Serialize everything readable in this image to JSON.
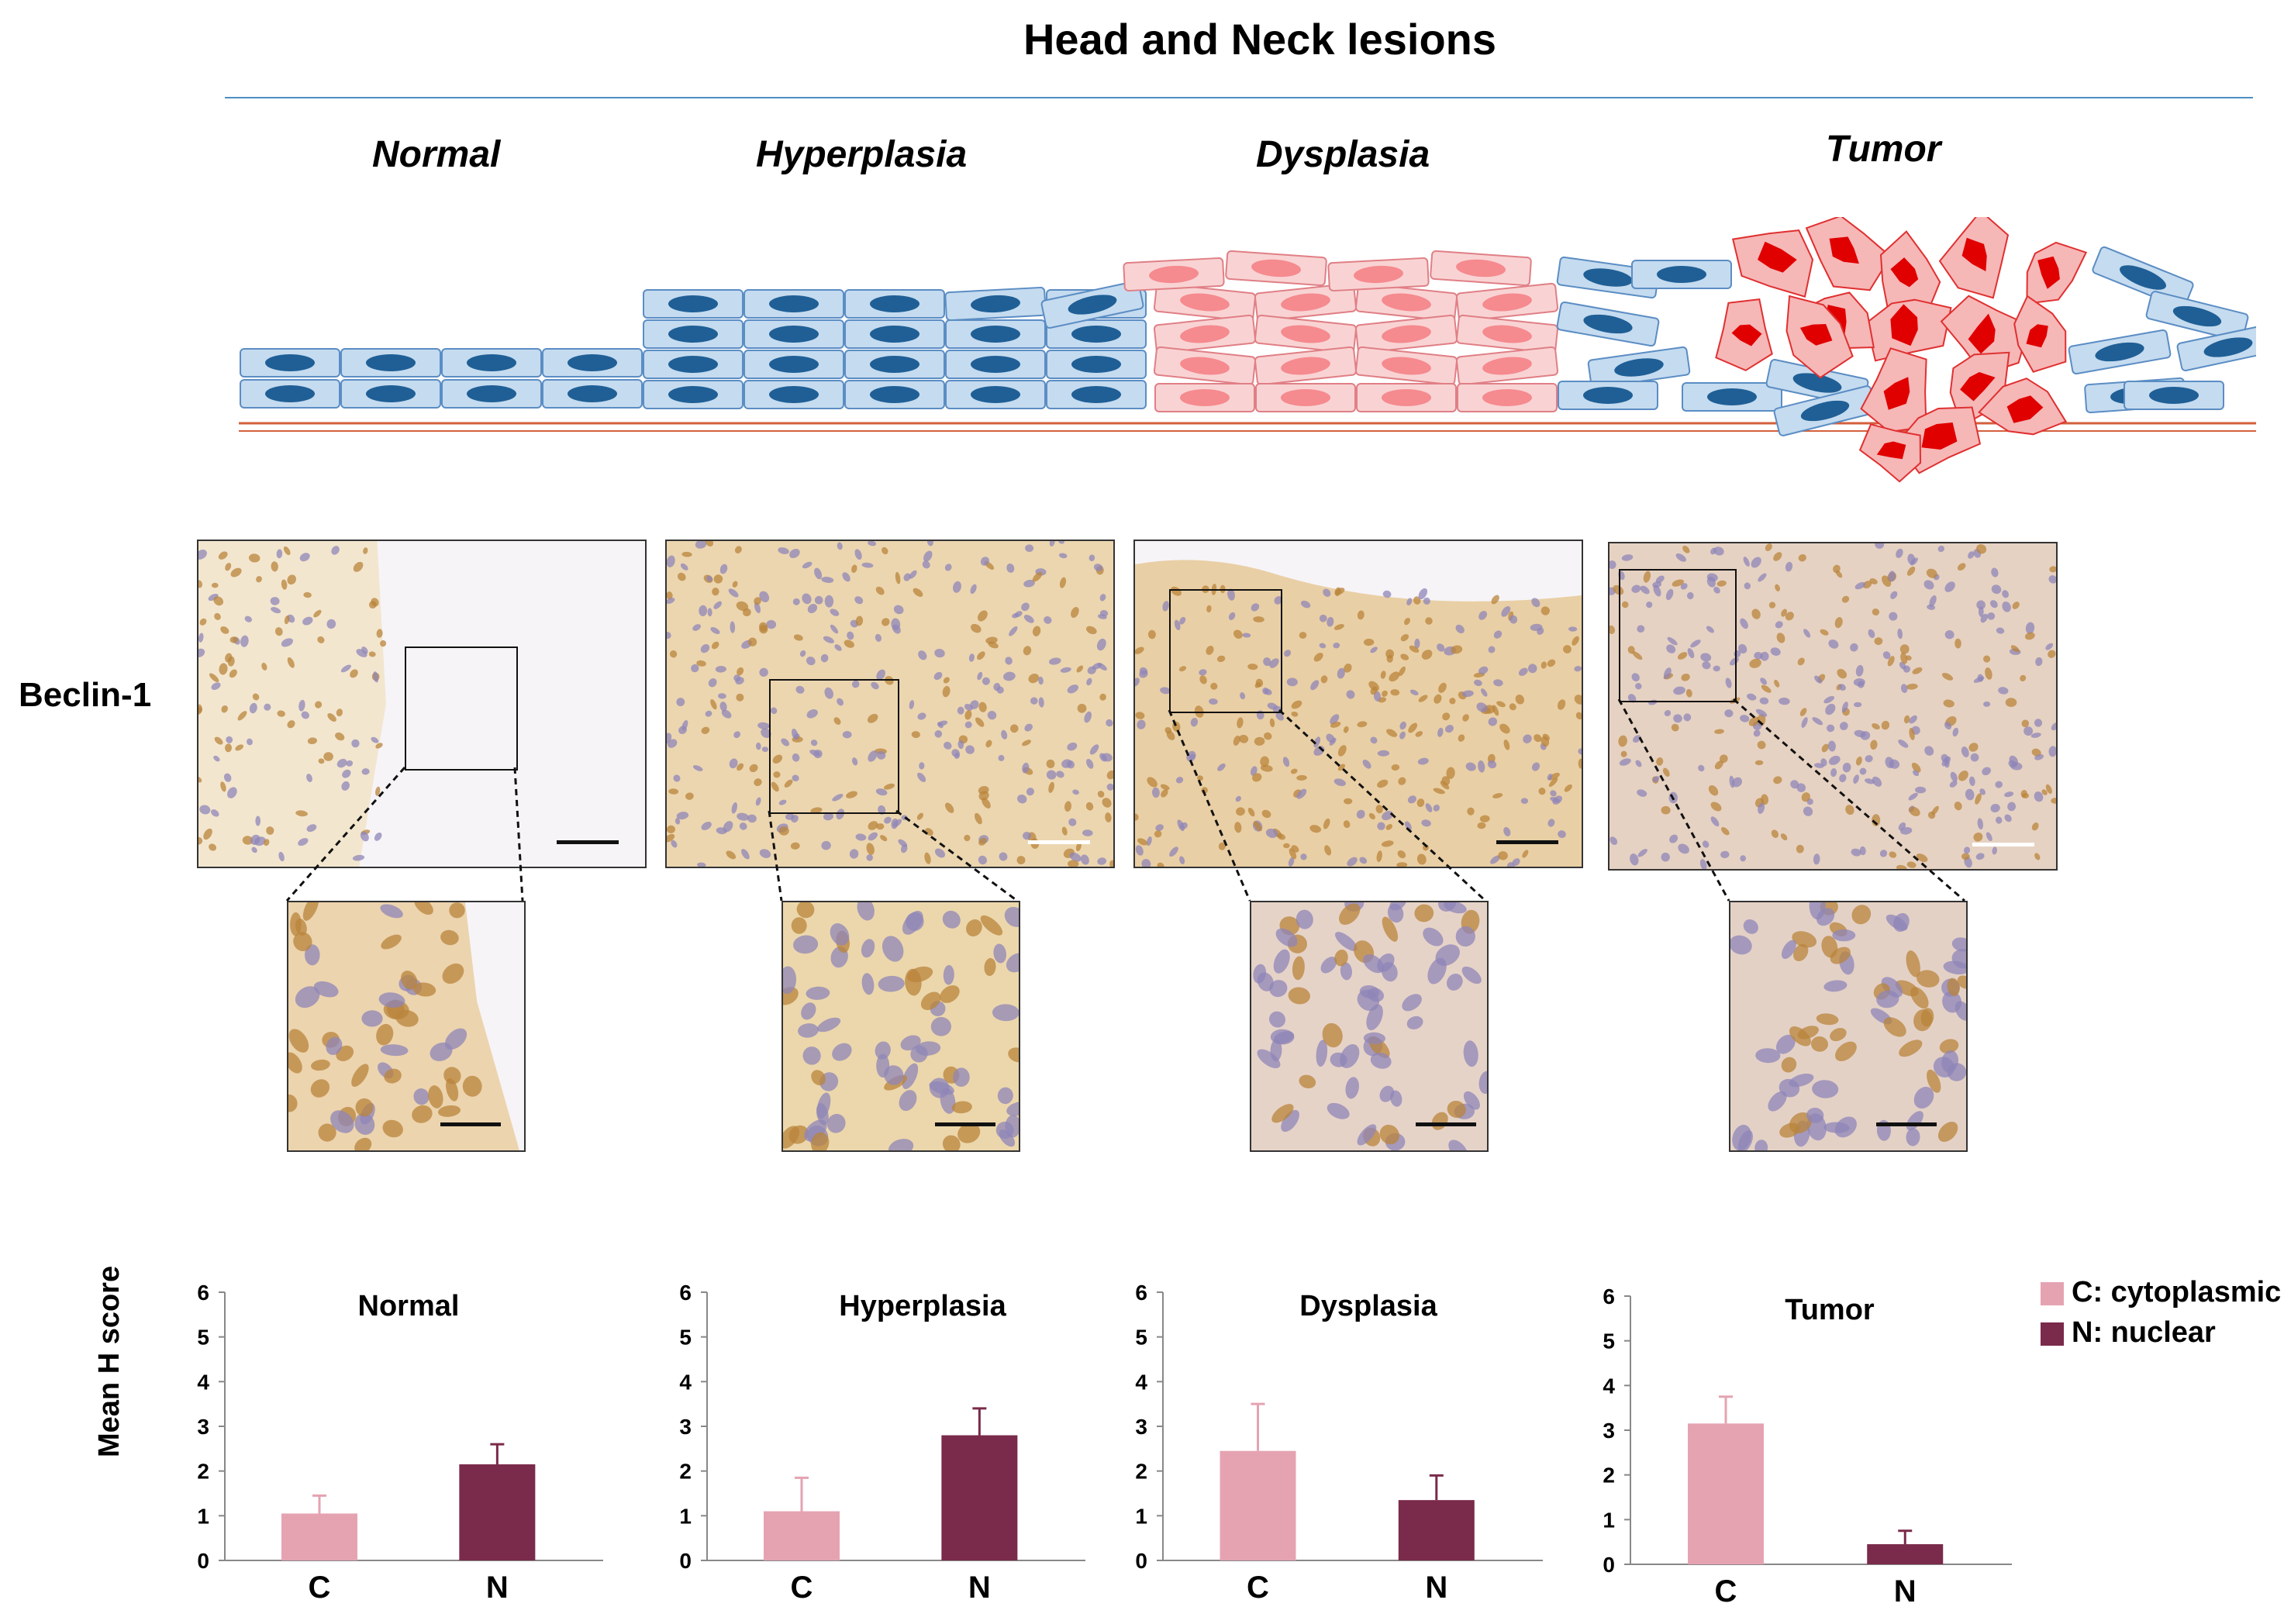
{
  "figure": {
    "title": "Head and Neck lesions",
    "stages": [
      "Normal",
      "Hyperplasia",
      "Dysplasia",
      "Tumor"
    ],
    "row_label": "Beclin-1",
    "colors": {
      "normal_cell_fill": "#c5dbef",
      "normal_cell_stroke": "#5b8dc4",
      "normal_nucleus": "#1f5f96",
      "dysplastic_cell_fill": "#f9d3d3",
      "dysplastic_nucleus": "#f58a8f",
      "tumor_cell_fill": "#f6b7b7",
      "tumor_nucleus": "#e00000",
      "basement_line": "#d45f3d",
      "stain_brown": "#b9843b",
      "stain_blue": "#8f86b8",
      "background_tissue": "#efe0c8"
    }
  },
  "legend": {
    "items": [
      {
        "label": "C: cytoplasmic",
        "color": "#e5a3b2"
      },
      {
        "label": "N: nuclear",
        "color": "#7a2a4a"
      }
    ]
  },
  "chart_data": [
    {
      "type": "bar",
      "title": "Normal",
      "categories": [
        "C",
        "N"
      ],
      "values": [
        1.05,
        2.15
      ],
      "errors": [
        0.4,
        0.45
      ],
      "ylabel": "Mean H score",
      "ylim": [
        0,
        6
      ],
      "yticks": [
        0,
        1,
        2,
        3,
        4,
        5,
        6
      ],
      "colors": [
        "#e5a3b2",
        "#7a2a4a"
      ]
    },
    {
      "type": "bar",
      "title": "Hyperplasia",
      "categories": [
        "C",
        "N"
      ],
      "values": [
        1.1,
        2.8
      ],
      "errors": [
        0.75,
        0.6
      ],
      "ylabel": "",
      "ylim": [
        0,
        6
      ],
      "yticks": [
        0,
        1,
        2,
        3,
        4,
        5,
        6
      ],
      "colors": [
        "#e5a3b2",
        "#7a2a4a"
      ]
    },
    {
      "type": "bar",
      "title": "Dysplasia",
      "categories": [
        "C",
        "N"
      ],
      "values": [
        2.45,
        1.35
      ],
      "errors": [
        1.05,
        0.55
      ],
      "ylabel": "",
      "ylim": [
        0,
        6
      ],
      "yticks": [
        0,
        1,
        2,
        3,
        4,
        5,
        6
      ],
      "colors": [
        "#e5a3b2",
        "#7a2a4a"
      ]
    },
    {
      "type": "bar",
      "title": "Tumor",
      "categories": [
        "C",
        "N"
      ],
      "values": [
        3.15,
        0.45
      ],
      "errors": [
        0.6,
        0.3
      ],
      "ylabel": "",
      "ylim": [
        0,
        6
      ],
      "yticks": [
        0,
        1,
        2,
        3,
        4,
        5,
        6
      ],
      "colors": [
        "#e5a3b2",
        "#7a2a4a"
      ]
    }
  ]
}
